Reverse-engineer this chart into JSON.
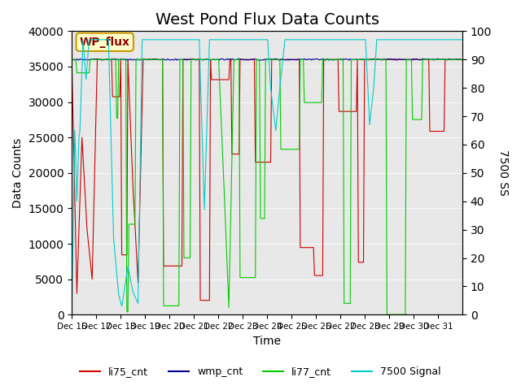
{
  "title": "West Pond Flux Data Counts",
  "xlabel": "Time",
  "ylabel_left": "Data Counts",
  "ylabel_right": "7500 SS",
  "ylim_left": [
    0,
    40000
  ],
  "ylim_right": [
    0,
    100
  ],
  "yticks_left": [
    0,
    5000,
    10000,
    15000,
    20000,
    25000,
    30000,
    35000,
    40000
  ],
  "yticks_right": [
    0,
    10,
    20,
    30,
    40,
    50,
    60,
    70,
    80,
    90,
    100
  ],
  "xticklabels": [
    "Dec 16",
    "Dec 17",
    "Dec 18",
    "Dec 19",
    "Dec 20",
    "Dec 21",
    "Dec 22",
    "Dec 23",
    "Dec 24",
    "Dec 25",
    "Dec 26",
    "Dec 27",
    "Dec 28",
    "Dec 29",
    "Dec 30",
    "Dec 31"
  ],
  "legend_labels": [
    "li75_cnt",
    "wmp_cnt",
    "li77_cnt",
    "7500 Signal"
  ],
  "legend_colors": [
    "#cc0000",
    "#000099",
    "#00cc00",
    "#00cccc"
  ],
  "line_colors": {
    "li75_cnt": "#cc0000",
    "wmp_cnt": "#000099",
    "li77_cnt": "#00cc00",
    "signal": "#00cccc"
  },
  "box_label": "WP_flux",
  "box_facecolor": "#ffffcc",
  "box_edgecolor": "#cc9900",
  "plot_bg_color": "#e8e8e8",
  "title_fontsize": 14,
  "label_fontsize": 10
}
